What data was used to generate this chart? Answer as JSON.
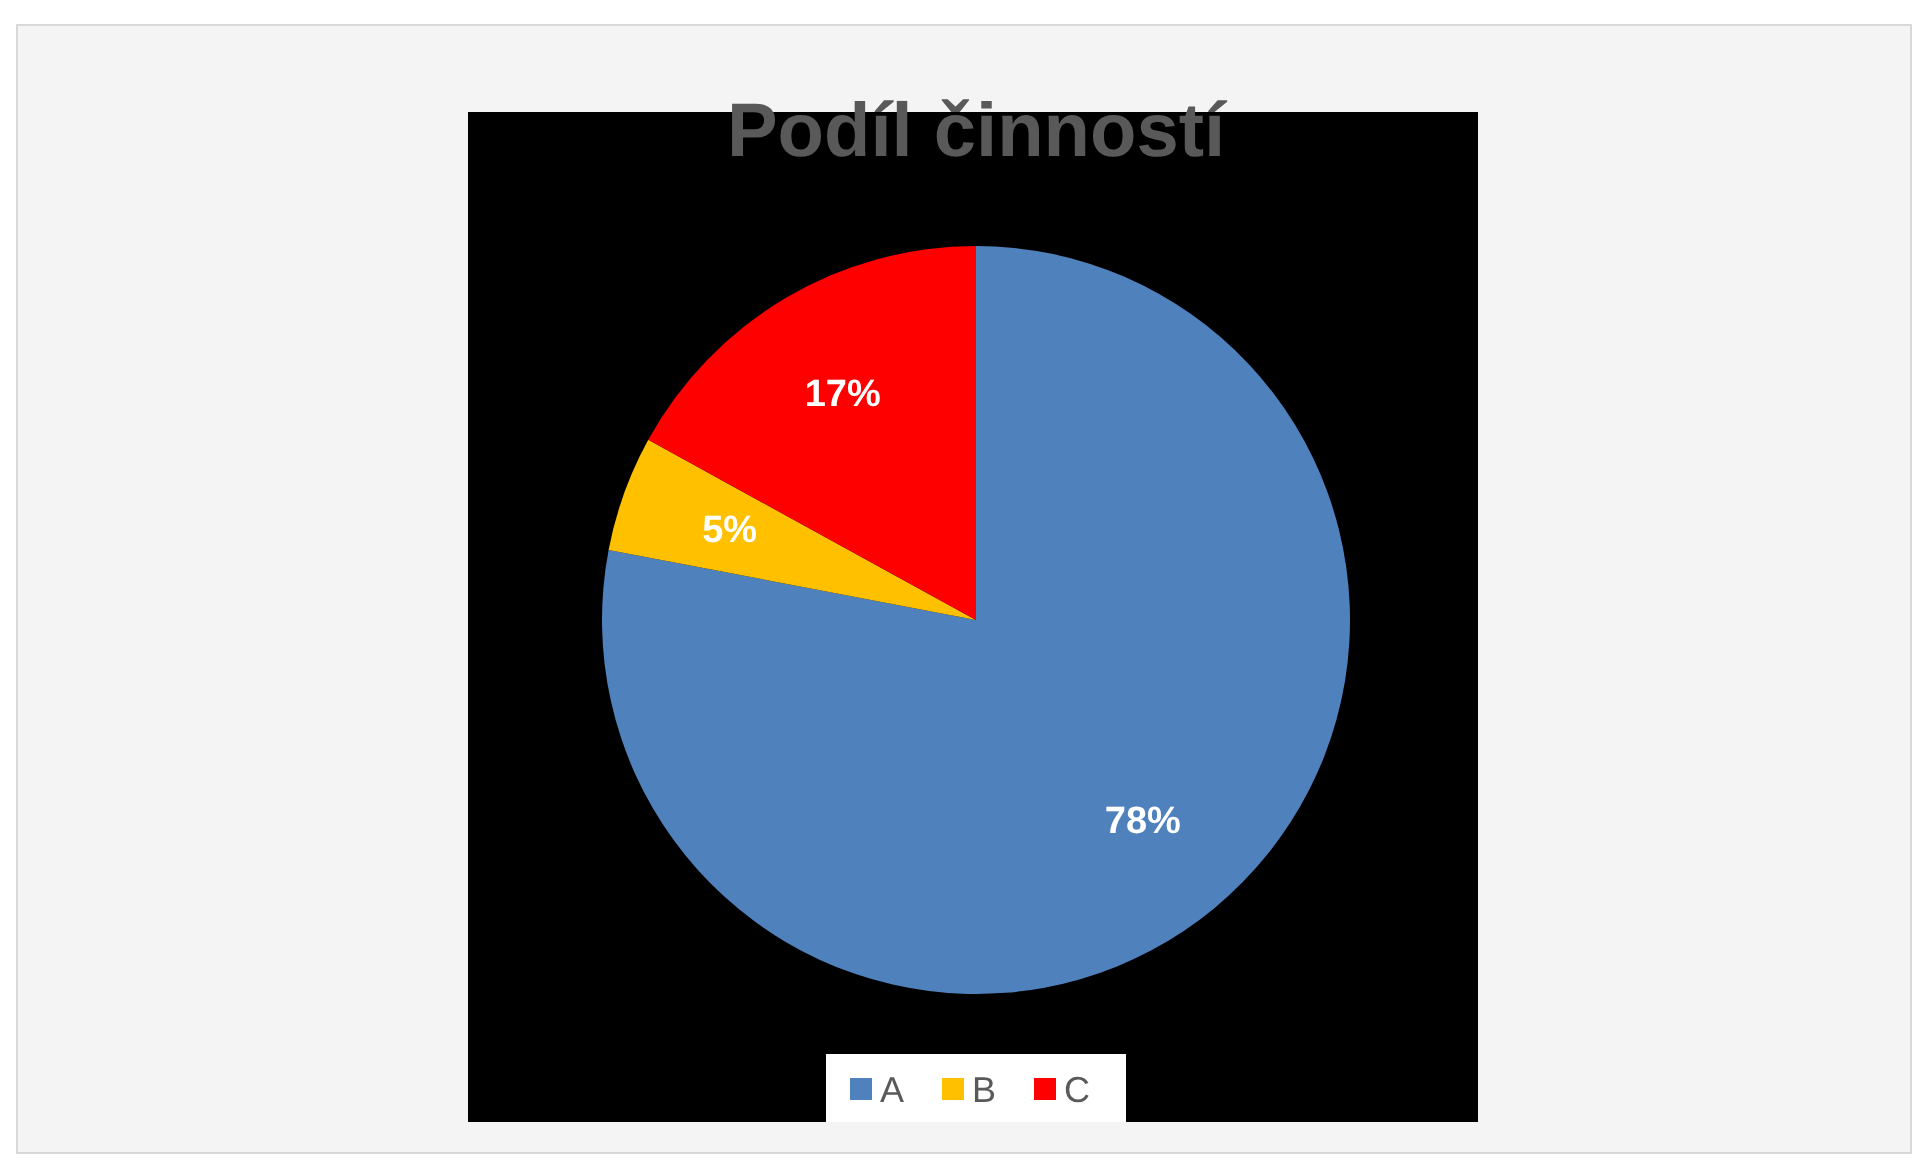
{
  "chart_data": {
    "type": "pie",
    "title": "Podíl činností",
    "categories": [
      "A",
      "B",
      "C"
    ],
    "values": [
      78,
      5,
      17
    ],
    "colors": [
      "#4f81bd",
      "#ffc000",
      "#ff0000"
    ],
    "value_labels": [
      "78%",
      "5%",
      "17%"
    ],
    "legend": "bottom"
  }
}
